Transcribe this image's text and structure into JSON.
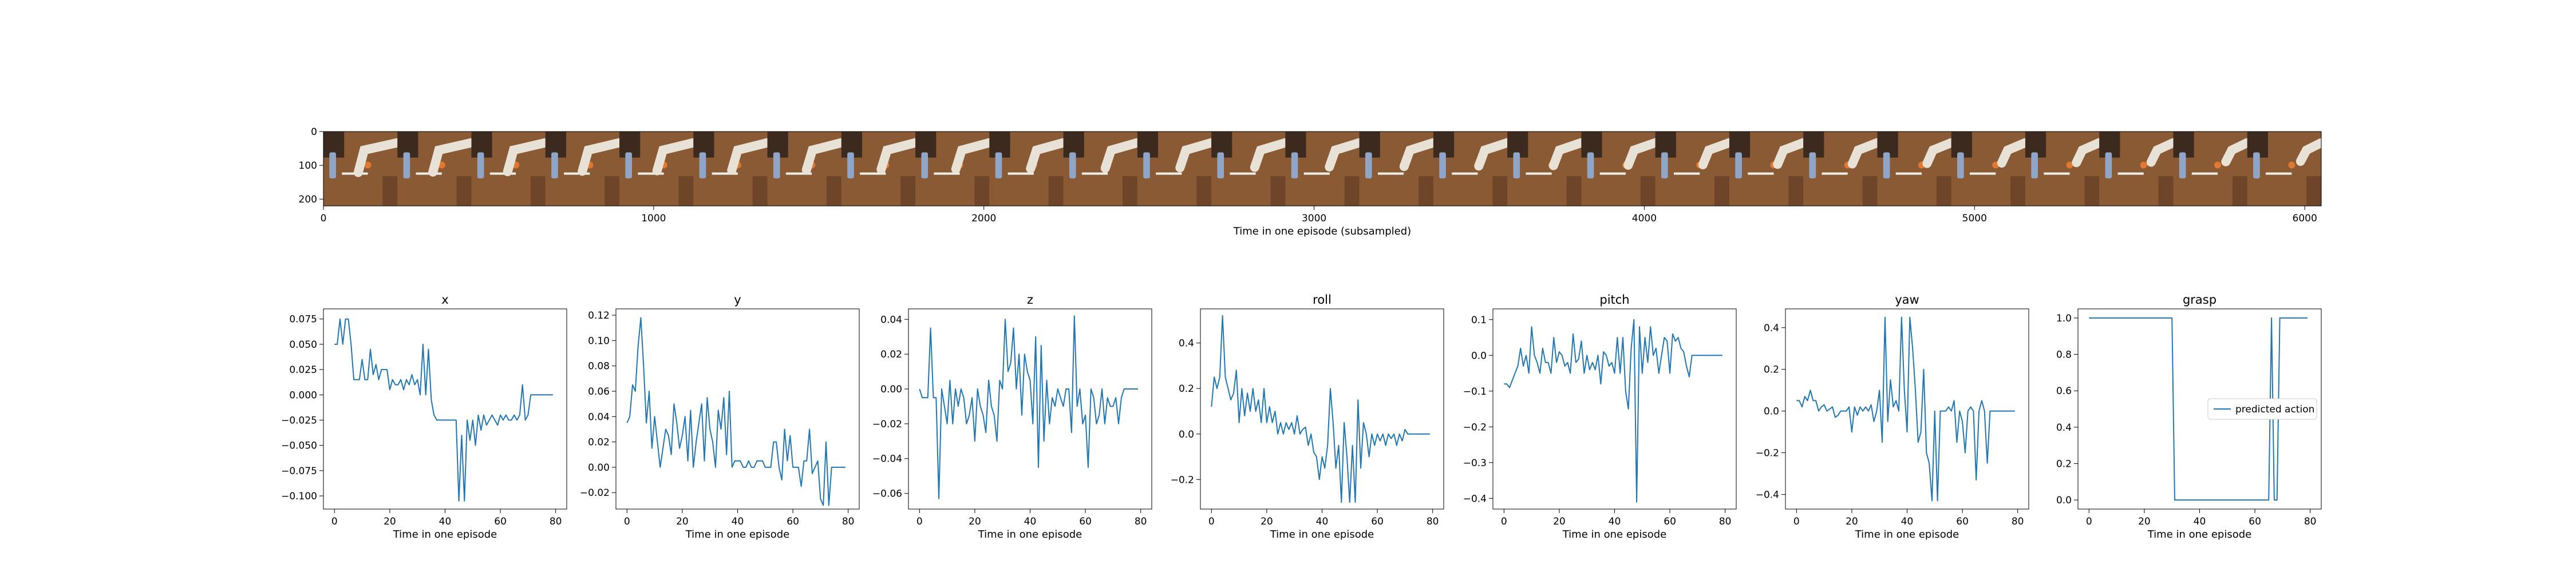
{
  "filmstrip": {
    "xlabel": "Time in one episode (subsampled)",
    "xticks": [
      0,
      1000,
      2000,
      3000,
      4000,
      5000,
      6000
    ],
    "yticks": [
      0,
      100,
      200
    ],
    "xlim": [
      0,
      6050
    ],
    "ylim": [
      0,
      220
    ],
    "frame_count": 27
  },
  "colors": {
    "series": "#1f77b4",
    "table_wood": "#8a5a35",
    "wall": "#3d2a1f",
    "arm": "#e8e2d6",
    "bottle": "#8fa6c9",
    "orange_object": "#e0782f"
  },
  "chart_data": [
    {
      "type": "line",
      "title": "x",
      "xlabel": "Time in one episode",
      "xlim": [
        -4,
        84
      ],
      "ylim": [
        -0.113,
        0.085
      ],
      "xticks": [
        0,
        20,
        40,
        60,
        80
      ],
      "yticks": [
        -0.1,
        -0.075,
        -0.05,
        -0.025,
        0.0,
        0.025,
        0.05,
        0.075
      ],
      "ytick_labels": [
        "−0.100",
        "−0.075",
        "−0.050",
        "−0.025",
        "0.000",
        "0.025",
        "0.050",
        "0.075"
      ],
      "series": [
        {
          "values": [
            0.05,
            0.05,
            0.075,
            0.05,
            0.075,
            0.075,
            0.05,
            0.015,
            0.015,
            0.015,
            0.035,
            0.015,
            0.015,
            0.045,
            0.02,
            0.03,
            0.015,
            0.025,
            0.025,
            0.025,
            0.005,
            0.015,
            0.01,
            0.01,
            0.015,
            0.005,
            0.015,
            0.01,
            0.02,
            0.01,
            0.015,
            0.0,
            0.05,
            0.0,
            0.045,
            -0.005,
            -0.02,
            -0.025,
            -0.025,
            -0.025,
            -0.025,
            -0.025,
            -0.025,
            -0.025,
            -0.025,
            -0.105,
            -0.04,
            -0.105,
            -0.025,
            -0.045,
            -0.025,
            -0.05,
            -0.02,
            -0.035,
            -0.02,
            -0.03,
            -0.025,
            -0.02,
            -0.025,
            -0.03,
            -0.02,
            -0.025,
            -0.02,
            -0.025,
            -0.025,
            -0.02,
            -0.025,
            -0.02,
            0.01,
            -0.025,
            -0.02,
            0.0,
            0.0,
            0.0,
            0.0,
            0.0,
            0.0,
            0.0,
            0.0,
            0.0
          ]
        }
      ]
    },
    {
      "type": "line",
      "title": "y",
      "xlabel": "Time in one episode",
      "xlim": [
        -4,
        84
      ],
      "ylim": [
        -0.033,
        0.125
      ],
      "xticks": [
        0,
        20,
        40,
        60,
        80
      ],
      "yticks": [
        -0.02,
        0.0,
        0.02,
        0.04,
        0.06,
        0.08,
        0.1,
        0.12
      ],
      "ytick_labels": [
        "−0.02",
        "0.00",
        "0.02",
        "0.04",
        "0.06",
        "0.08",
        "0.10",
        "0.12"
      ],
      "series": [
        {
          "values": [
            0.035,
            0.04,
            0.065,
            0.06,
            0.095,
            0.118,
            0.08,
            0.035,
            0.06,
            0.015,
            0.04,
            0.02,
            0.0,
            0.015,
            0.03,
            0.025,
            0.01,
            0.05,
            0.035,
            0.015,
            0.025,
            0.04,
            0.005,
            0.045,
            0.0,
            0.02,
            0.035,
            0.05,
            0.005,
            0.055,
            0.03,
            0.02,
            0.0,
            0.045,
            0.03,
            0.055,
            0.01,
            0.06,
            0.0,
            0.005,
            0.005,
            0.005,
            0.0,
            0.0,
            0.005,
            0.0,
            0.0,
            0.005,
            0.005,
            0.005,
            0.0,
            0.0,
            0.0,
            0.02,
            0.02,
            0.0,
            -0.01,
            0.03,
            0.005,
            0.025,
            0.0,
            0.0,
            0.0,
            -0.015,
            0.005,
            0.005,
            0.03,
            -0.005,
            0.0,
            0.005,
            -0.025,
            -0.03,
            0.02,
            -0.03,
            0.0,
            0.0,
            0.0,
            0.0,
            0.0,
            0.0
          ]
        }
      ]
    },
    {
      "type": "line",
      "title": "z",
      "xlabel": "Time in one episode",
      "xlim": [
        -4,
        84
      ],
      "ylim": [
        -0.069,
        0.046
      ],
      "xticks": [
        0,
        20,
        40,
        60,
        80
      ],
      "yticks": [
        -0.06,
        -0.04,
        -0.02,
        0.0,
        0.02,
        0.04
      ],
      "ytick_labels": [
        "−0.06",
        "−0.04",
        "−0.02",
        "0.00",
        "0.02",
        "0.04"
      ],
      "series": [
        {
          "values": [
            0.0,
            -0.005,
            -0.005,
            -0.005,
            0.035,
            -0.005,
            -0.005,
            -0.063,
            0.0,
            -0.01,
            -0.02,
            0.005,
            -0.02,
            0.0,
            -0.01,
            0.0,
            -0.005,
            -0.02,
            -0.015,
            -0.005,
            -0.03,
            0.0,
            -0.01,
            -0.015,
            -0.025,
            0.005,
            -0.01,
            -0.015,
            -0.03,
            0.005,
            0.0,
            0.04,
            0.01,
            0.015,
            0.035,
            0.0,
            0.02,
            -0.015,
            0.02,
            0.01,
            0.005,
            -0.02,
            0.03,
            -0.045,
            0.025,
            -0.03,
            0.005,
            -0.02,
            -0.005,
            -0.01,
            0.0,
            -0.005,
            -0.01,
            0.0,
            0.0,
            -0.025,
            0.042,
            -0.01,
            0.0,
            -0.02,
            -0.015,
            -0.045,
            0.0,
            -0.005,
            -0.02,
            -0.015,
            0.0,
            -0.02,
            -0.005,
            -0.01,
            -0.01,
            -0.005,
            -0.02,
            -0.005,
            0.0,
            0.0,
            0.0,
            0.0,
            0.0,
            0.0
          ]
        }
      ]
    },
    {
      "type": "line",
      "title": "roll",
      "xlabel": "Time in one episode",
      "xlim": [
        -4,
        84
      ],
      "ylim": [
        -0.33,
        0.55
      ],
      "xticks": [
        0,
        20,
        40,
        60,
        80
      ],
      "yticks": [
        -0.2,
        0.0,
        0.2,
        0.4
      ],
      "ytick_labels": [
        "−0.2",
        "0.0",
        "0.2",
        "0.4"
      ],
      "series": [
        {
          "values": [
            0.12,
            0.25,
            0.2,
            0.25,
            0.52,
            0.25,
            0.2,
            0.15,
            0.18,
            0.28,
            0.05,
            0.2,
            0.08,
            0.18,
            0.1,
            0.2,
            0.1,
            0.15,
            0.05,
            0.2,
            0.05,
            0.12,
            0.05,
            0.1,
            0.0,
            0.05,
            0.0,
            0.05,
            0.02,
            0.05,
            0.0,
            0.08,
            0.0,
            0.02,
            0.03,
            -0.05,
            0.0,
            -0.08,
            -0.1,
            -0.2,
            -0.1,
            -0.15,
            -0.05,
            0.2,
            0.05,
            -0.15,
            -0.05,
            -0.3,
            0.05,
            -0.1,
            -0.3,
            -0.05,
            -0.3,
            0.15,
            -0.15,
            0.05,
            0.0,
            -0.1,
            0.0,
            -0.05,
            0.0,
            -0.03,
            0.0,
            -0.05,
            0.0,
            -0.02,
            0.0,
            -0.05,
            0.0,
            -0.03,
            0.02,
            0.0,
            0.0,
            0.0,
            0.0,
            0.0,
            0.0,
            0.0,
            0.0,
            0.0
          ]
        }
      ]
    },
    {
      "type": "line",
      "title": "pitch",
      "xlabel": "Time in one episode",
      "xlim": [
        -4,
        84
      ],
      "ylim": [
        -0.43,
        0.13
      ],
      "xticks": [
        0,
        20,
        40,
        60,
        80
      ],
      "yticks": [
        -0.4,
        -0.3,
        -0.2,
        -0.1,
        0.0,
        0.1
      ],
      "ytick_labels": [
        "−0.4",
        "−0.3",
        "−0.2",
        "−0.1",
        "0.0",
        "0.1"
      ],
      "series": [
        {
          "values": [
            -0.08,
            -0.08,
            -0.09,
            -0.07,
            -0.05,
            -0.03,
            0.02,
            -0.03,
            0.0,
            -0.05,
            0.08,
            0.0,
            -0.02,
            -0.05,
            0.02,
            -0.02,
            -0.02,
            -0.05,
            0.05,
            -0.02,
            0.01,
            0.0,
            -0.03,
            -0.02,
            -0.05,
            0.06,
            -0.02,
            -0.01,
            0.04,
            -0.05,
            0.0,
            -0.04,
            -0.02,
            -0.04,
            0.0,
            -0.08,
            0.01,
            0.0,
            -0.03,
            -0.02,
            -0.05,
            0.05,
            -0.05,
            0.05,
            -0.1,
            -0.15,
            0.02,
            0.1,
            -0.41,
            0.08,
            -0.05,
            0.05,
            -0.02,
            0.08,
            0.0,
            0.02,
            -0.05,
            0.0,
            0.05,
            0.04,
            -0.05,
            0.06,
            0.04,
            0.05,
            0.02,
            0.01,
            -0.03,
            -0.06,
            0.0,
            0.0,
            0.0,
            0.0,
            0.0,
            0.0,
            0.0,
            0.0,
            0.0,
            0.0,
            0.0,
            0.0
          ]
        }
      ]
    },
    {
      "type": "line",
      "title": "yaw",
      "xlabel": "Time in one episode",
      "xlim": [
        -4,
        84
      ],
      "ylim": [
        -0.47,
        0.49
      ],
      "xticks": [
        0,
        20,
        40,
        60,
        80
      ],
      "yticks": [
        -0.4,
        -0.2,
        0.0,
        0.2,
        0.4
      ],
      "ytick_labels": [
        "−0.4",
        "−0.2",
        "0.0",
        "0.2",
        "0.4"
      ],
      "series": [
        {
          "values": [
            0.05,
            0.05,
            0.02,
            0.07,
            0.05,
            0.1,
            0.05,
            0.05,
            0.0,
            0.02,
            0.03,
            0.0,
            0.01,
            0.02,
            -0.03,
            -0.02,
            0.0,
            0.0,
            0.0,
            0.02,
            -0.1,
            0.02,
            -0.02,
            0.02,
            0.0,
            0.02,
            0.0,
            0.03,
            -0.05,
            0.0,
            0.1,
            -0.15,
            0.45,
            -0.05,
            0.15,
            0.02,
            0.05,
            0.0,
            0.45,
            0.1,
            -0.1,
            0.45,
            0.3,
            0.1,
            -0.15,
            -0.1,
            0.2,
            -0.2,
            -0.25,
            -0.43,
            0.0,
            -0.43,
            0.0,
            0.0,
            0.0,
            0.02,
            0.0,
            0.05,
            -0.15,
            0.0,
            -0.05,
            -0.2,
            0.0,
            0.02,
            0.0,
            -0.33,
            0.0,
            0.05,
            0.0,
            -0.25,
            0.0,
            0.0,
            0.0,
            0.0,
            0.0,
            0.0,
            0.0,
            0.0,
            0.0,
            0.0
          ]
        }
      ]
    },
    {
      "type": "line",
      "title": "grasp",
      "xlabel": "Time in one episode",
      "xlim": [
        -4,
        84
      ],
      "ylim": [
        -0.05,
        1.05
      ],
      "xticks": [
        0,
        20,
        40,
        60,
        80
      ],
      "yticks": [
        0.0,
        0.2,
        0.4,
        0.6,
        0.8,
        1.0
      ],
      "ytick_labels": [
        "0.0",
        "0.2",
        "0.4",
        "0.6",
        "0.8",
        "1.0"
      ],
      "legend": {
        "placement": "center-right",
        "entries": [
          "predicted action"
        ]
      },
      "series": [
        {
          "name": "predicted action",
          "values": [
            1,
            1,
            1,
            1,
            1,
            1,
            1,
            1,
            1,
            1,
            1,
            1,
            1,
            1,
            1,
            1,
            1,
            1,
            1,
            1,
            1,
            1,
            1,
            1,
            1,
            1,
            1,
            1,
            1,
            1,
            1,
            0,
            0,
            0,
            0,
            0,
            0,
            0,
            0,
            0,
            0,
            0,
            0,
            0,
            0,
            0,
            0,
            0,
            0,
            0,
            0,
            0,
            0,
            0,
            0,
            0,
            0,
            0,
            0,
            0,
            0,
            0,
            0,
            0,
            0,
            0,
            1,
            0,
            0,
            1,
            1,
            1,
            1,
            1,
            1,
            1,
            1,
            1,
            1,
            1
          ]
        }
      ]
    }
  ]
}
